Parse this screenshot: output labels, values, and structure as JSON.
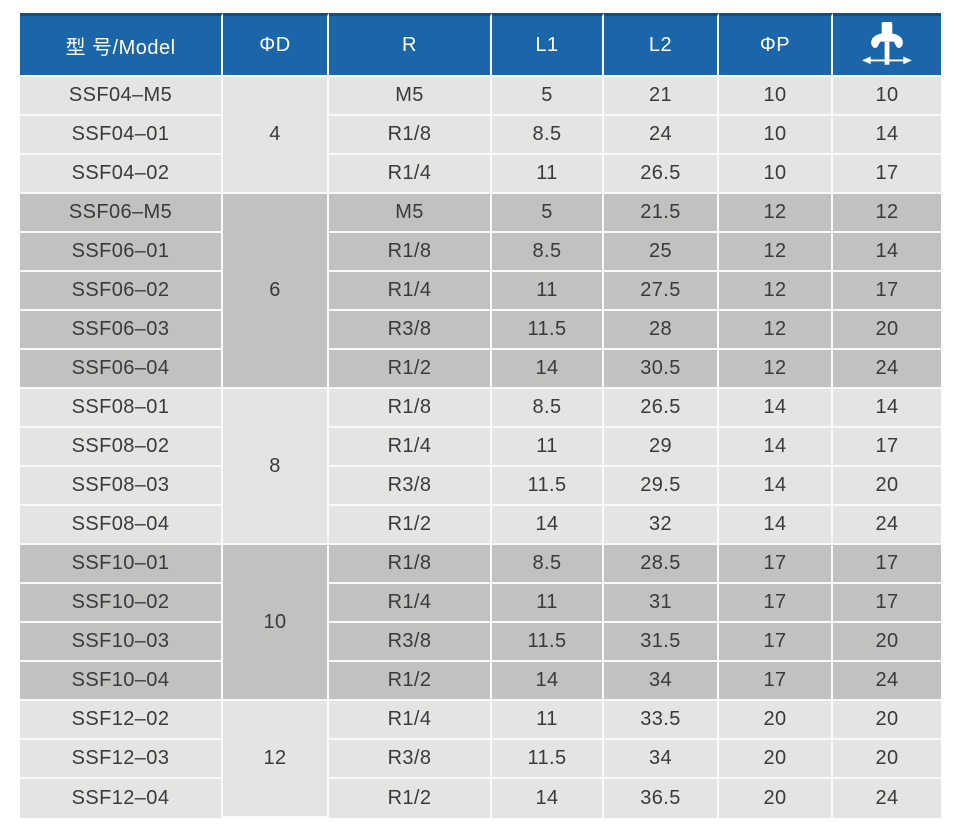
{
  "table": {
    "header": {
      "columns": [
        "型 号/Model",
        "ΦD",
        "R",
        "L1",
        "L2",
        "ΦP"
      ],
      "icon_column": "wrench-size-icon"
    },
    "colors": {
      "page_bg": "#ffffff",
      "header_bg": "#1b65a9",
      "header_top": "#14507f",
      "light_bg": "#e4e4e2",
      "dark_bg": "#c1c1c0",
      "sep": "#f9f9f7",
      "text": "#3a3a3a",
      "header_text": "#ffffff"
    },
    "groups": [
      {
        "phi_d": "4",
        "shade": "light",
        "rows": [
          {
            "model": "SSF04–M5",
            "r": "M5",
            "l1": "5",
            "l2": "21",
            "phi_p": "10",
            "wrench": "10"
          },
          {
            "model": "SSF04–01",
            "r": "R1/8",
            "l1": "8.5",
            "l2": "24",
            "phi_p": "10",
            "wrench": "14"
          },
          {
            "model": "SSF04–02",
            "r": "R1/4",
            "l1": "11",
            "l2": "26.5",
            "phi_p": "10",
            "wrench": "17"
          }
        ]
      },
      {
        "phi_d": "6",
        "shade": "dark",
        "rows": [
          {
            "model": "SSF06–M5",
            "r": "M5",
            "l1": "5",
            "l2": "21.5",
            "phi_p": "12",
            "wrench": "12"
          },
          {
            "model": "SSF06–01",
            "r": "R1/8",
            "l1": "8.5",
            "l2": "25",
            "phi_p": "12",
            "wrench": "14"
          },
          {
            "model": "SSF06–02",
            "r": "R1/4",
            "l1": "11",
            "l2": "27.5",
            "phi_p": "12",
            "wrench": "17"
          },
          {
            "model": "SSF06–03",
            "r": "R3/8",
            "l1": "11.5",
            "l2": "28",
            "phi_p": "12",
            "wrench": "20"
          },
          {
            "model": "SSF06–04",
            "r": "R1/2",
            "l1": "14",
            "l2": "30.5",
            "phi_p": "12",
            "wrench": "24"
          }
        ]
      },
      {
        "phi_d": "8",
        "shade": "light",
        "rows": [
          {
            "model": "SSF08–01",
            "r": "R1/8",
            "l1": "8.5",
            "l2": "26.5",
            "phi_p": "14",
            "wrench": "14"
          },
          {
            "model": "SSF08–02",
            "r": "R1/4",
            "l1": "11",
            "l2": "29",
            "phi_p": "14",
            "wrench": "17"
          },
          {
            "model": "SSF08–03",
            "r": "R3/8",
            "l1": "11.5",
            "l2": "29.5",
            "phi_p": "14",
            "wrench": "20"
          },
          {
            "model": "SSF08–04",
            "r": "R1/2",
            "l1": "14",
            "l2": "32",
            "phi_p": "14",
            "wrench": "24"
          }
        ]
      },
      {
        "phi_d": "10",
        "shade": "dark",
        "rows": [
          {
            "model": "SSF10–01",
            "r": "R1/8",
            "l1": "8.5",
            "l2": "28.5",
            "phi_p": "17",
            "wrench": "17"
          },
          {
            "model": "SSF10–02",
            "r": "R1/4",
            "l1": "11",
            "l2": "31",
            "phi_p": "17",
            "wrench": "17"
          },
          {
            "model": "SSF10–03",
            "r": "R3/8",
            "l1": "11.5",
            "l2": "31.5",
            "phi_p": "17",
            "wrench": "20"
          },
          {
            "model": "SSF10–04",
            "r": "R1/2",
            "l1": "14",
            "l2": "34",
            "phi_p": "17",
            "wrench": "24"
          }
        ]
      },
      {
        "phi_d": "12",
        "shade": "light",
        "rows": [
          {
            "model": "SSF12–02",
            "r": "R1/4",
            "l1": "11",
            "l2": "33.5",
            "phi_p": "20",
            "wrench": "20"
          },
          {
            "model": "SSF12–03",
            "r": "R3/8",
            "l1": "11.5",
            "l2": "34",
            "phi_p": "20",
            "wrench": "20"
          },
          {
            "model": "SSF12–04",
            "r": "R1/2",
            "l1": "14",
            "l2": "36.5",
            "phi_p": "20",
            "wrench": "24"
          }
        ]
      }
    ]
  }
}
